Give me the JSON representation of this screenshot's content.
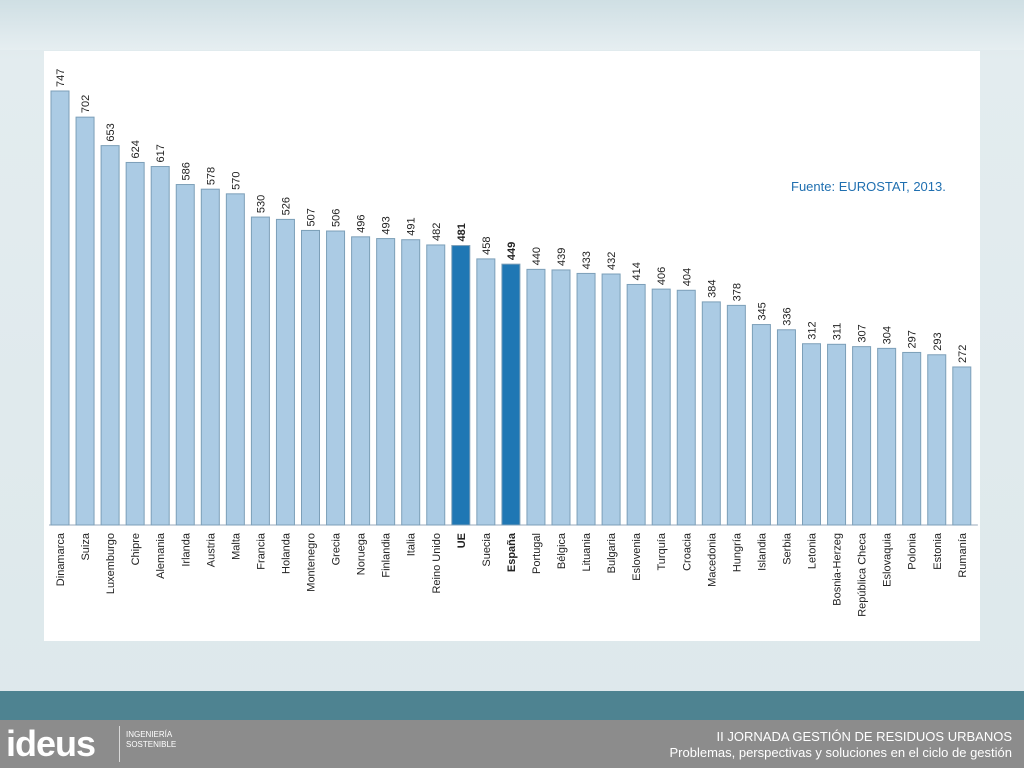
{
  "source_note": "Fuente: EUROSTAT, 2013.",
  "footer": {
    "logo": "ideus",
    "tagline": "INGENIERÍA SOSTENIBLE",
    "line1": "II JORNADA GESTIÓN DE RESIDUOS URBANOS",
    "line2": "Problemas, perspectivas y soluciones en el ciclo de gestión"
  },
  "colors": {
    "bar": "#abcbe4",
    "highlight": "#1f77b4",
    "stroke": "#7c9fb8"
  },
  "chart_data": {
    "type": "bar",
    "title": "",
    "xlabel": "",
    "ylabel": "",
    "ylim": [
      0,
      747
    ],
    "grid": false,
    "categories": [
      "Dinamarca",
      "Suiza",
      "Luxemburgo",
      "Chipre",
      "Alemania",
      "Irlanda",
      "Austria",
      "Malta",
      "Francia",
      "Holanda",
      "Montenegro",
      "Grecia",
      "Noruega",
      "Finlandia",
      "Italia",
      "Reino Unido",
      "UE",
      "Suecia",
      "España",
      "Portugal",
      "Bélgica",
      "Lituania",
      "Bulgaria",
      "Eslovenia",
      "Turquía",
      "Croacia",
      "Macedonia",
      "Hungría",
      "Islandia",
      "Serbia",
      "Letonia",
      "Bosnia-Herzeg",
      "República Checa",
      "Eslovaquia",
      "Polonia",
      "Estonia",
      "Rumanía"
    ],
    "values": [
      747,
      702,
      653,
      624,
      617,
      586,
      578,
      570,
      530,
      526,
      507,
      506,
      496,
      493,
      491,
      482,
      481,
      458,
      449,
      440,
      439,
      433,
      432,
      414,
      406,
      404,
      384,
      378,
      345,
      336,
      312,
      311,
      307,
      304,
      297,
      293,
      272
    ],
    "highlight": [
      "UE",
      "España"
    ]
  }
}
